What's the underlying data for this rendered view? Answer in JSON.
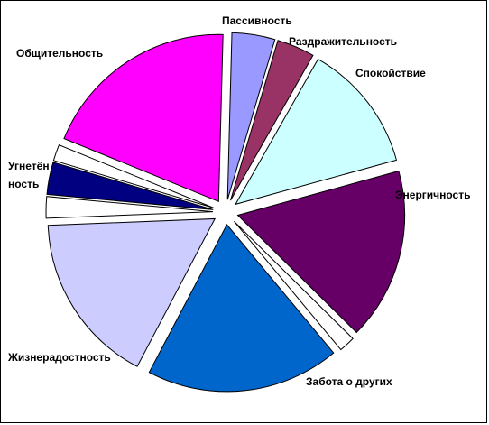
{
  "chart_data": {
    "type": "pie",
    "exploded": true,
    "slices": [
      {
        "label": "Пассивность",
        "value": 4.0,
        "color": "#9999FF"
      },
      {
        "label": "Раздражительность",
        "value": 3.5,
        "color": "#993366"
      },
      {
        "label": "Спокойствие",
        "value": 12.0,
        "color": "#CCFFFF"
      },
      {
        "label": "Энергичность",
        "value": 16.0,
        "color": "#660066"
      },
      {
        "label": "",
        "value": 1.5,
        "color": "#FFFFFF"
      },
      {
        "label": "Забота о других",
        "value": 18.0,
        "color": "#0066CC"
      },
      {
        "label": "Жизнерадостность",
        "value": 16.0,
        "color": "#CCCCFF"
      },
      {
        "label": "",
        "value": 2.0,
        "color": "#FFFFFF"
      },
      {
        "label": [
          "Угнетён",
          "ность"
        ],
        "value": 3.0,
        "color": "#000080"
      },
      {
        "label": "",
        "value": 1.5,
        "color": "#FFFFFF"
      },
      {
        "label": "Общительность",
        "value": 18.5,
        "color": "#FF00FF"
      }
    ],
    "legend": "none",
    "labels": "outside"
  }
}
